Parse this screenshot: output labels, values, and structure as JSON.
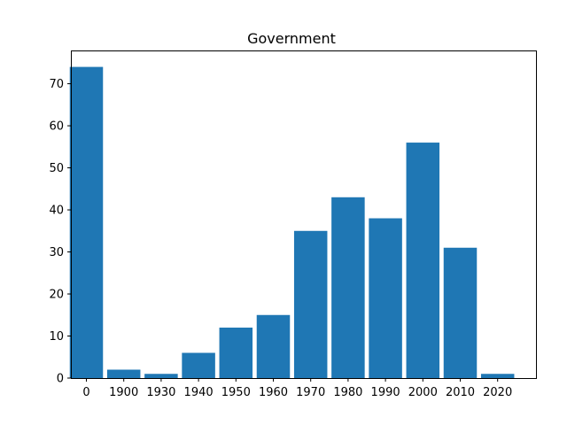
{
  "chart_data": {
    "type": "bar",
    "title": "Government",
    "xlabel": "",
    "ylabel": "",
    "categories": [
      "0",
      "1900",
      "1930",
      "1940",
      "1950",
      "1960",
      "1970",
      "1980",
      "1990",
      "2000",
      "2010",
      "2020"
    ],
    "values": [
      74,
      2,
      1,
      6,
      12,
      15,
      35,
      43,
      38,
      56,
      31,
      1
    ],
    "yticks": [
      0,
      10,
      20,
      30,
      40,
      50,
      60,
      70
    ],
    "ylim": [
      0,
      77.7
    ],
    "grid": false,
    "bar_color": "#1f77b4"
  }
}
